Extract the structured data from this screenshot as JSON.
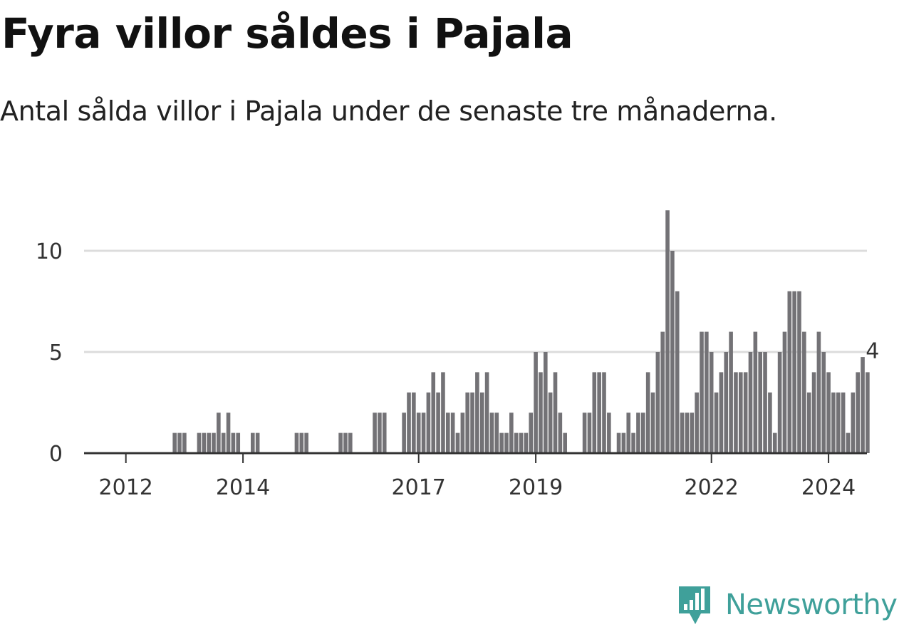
{
  "header": {
    "title": "Fyra villor såldes i Pajala",
    "subtitle": "Antal sålda villor i Pajala under de senaste tre månaderna."
  },
  "brand": {
    "name": "Newsworthy",
    "icon": "newsworthy-logo-icon",
    "color": "#3fa09a"
  },
  "colors": {
    "bar": "#737276",
    "highlight": "#17a398",
    "grid": "#dcdcdc",
    "axis": "#333333"
  },
  "chart_data": {
    "type": "bar",
    "title": "Fyra villor såldes i Pajala",
    "subtitle": "Antal sålda villor i Pajala under de senaste tre månaderna.",
    "xlabel": "",
    "ylabel": "",
    "ylim": [
      0,
      12
    ],
    "yticks": [
      0,
      5,
      10
    ],
    "grid": true,
    "x_start": "2011-09",
    "interval": "month",
    "xtick_labels": [
      {
        "label": "2012",
        "index": 4
      },
      {
        "label": "2014",
        "index": 28
      },
      {
        "label": "2017",
        "index": 64
      },
      {
        "label": "2019",
        "index": 88
      },
      {
        "label": "2022",
        "index": 124
      },
      {
        "label": "2024",
        "index": 148
      }
    ],
    "values": [
      0,
      0,
      0,
      0,
      0,
      0,
      0,
      0,
      0,
      0,
      0,
      0,
      0,
      0,
      1,
      1,
      1,
      0,
      0,
      1,
      1,
      1,
      1,
      2,
      1,
      2,
      1,
      1,
      0,
      0,
      1,
      1,
      0,
      0,
      0,
      0,
      0,
      0,
      0,
      1,
      1,
      1,
      0,
      0,
      0,
      0,
      0,
      0,
      1,
      1,
      1,
      0,
      0,
      0,
      0,
      2,
      2,
      2,
      0,
      0,
      0,
      2,
      3,
      3,
      2,
      2,
      3,
      4,
      3,
      4,
      2,
      2,
      1,
      2,
      3,
      3,
      4,
      3,
      4,
      2,
      2,
      1,
      1,
      2,
      1,
      1,
      1,
      2,
      5,
      4,
      5,
      3,
      4,
      2,
      1,
      0,
      0,
      0,
      2,
      2,
      4,
      4,
      4,
      2,
      0,
      1,
      1,
      2,
      1,
      2,
      2,
      4,
      3,
      5,
      6,
      12,
      10,
      8,
      2,
      2,
      2,
      3,
      6,
      6,
      5,
      3,
      4,
      5,
      6,
      4,
      4,
      4,
      5,
      6,
      5,
      5,
      3,
      1,
      5,
      6,
      8,
      8,
      8,
      6,
      3,
      4,
      6,
      5,
      4,
      3,
      3,
      3,
      1,
      3,
      4,
      4.75,
      4
    ],
    "highlight": {
      "index": 157,
      "value": 4,
      "label": "4"
    }
  }
}
